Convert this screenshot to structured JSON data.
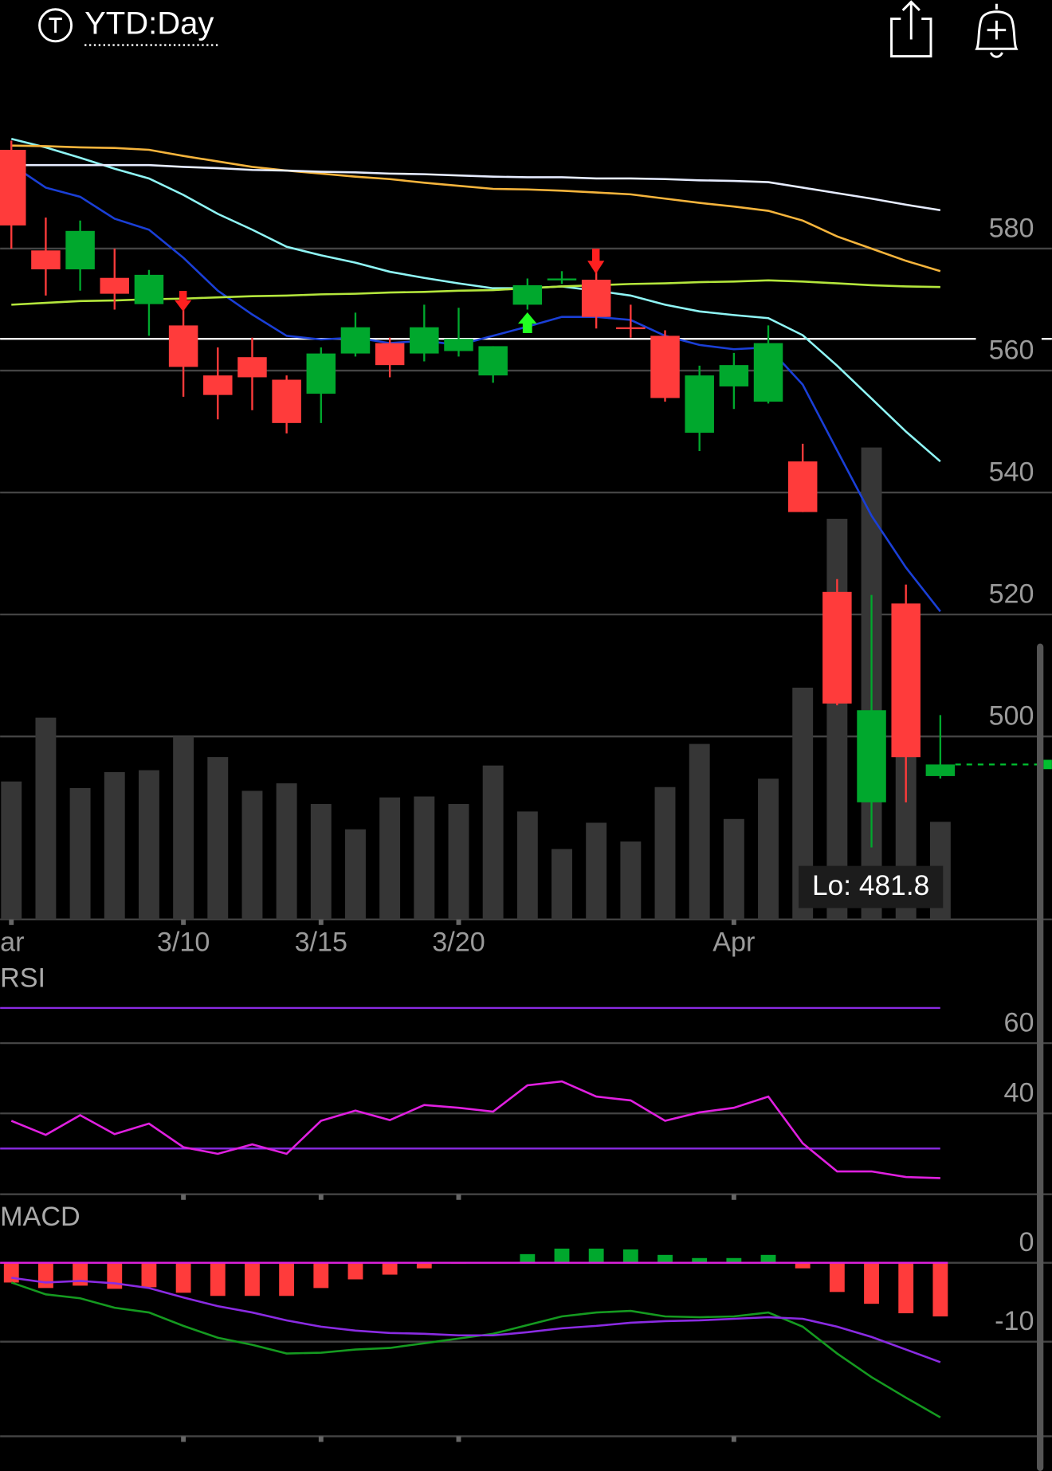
{
  "header": {
    "title": "YTD:Day"
  },
  "chart_data": [
    {
      "type": "candlestick",
      "categories": [
        "ar",
        null,
        null,
        null,
        null,
        "3/10",
        null,
        null,
        null,
        "3/15",
        null,
        null,
        null,
        "3/20",
        null,
        null,
        null,
        null,
        null,
        null,
        null,
        "Apr",
        null,
        null,
        null,
        null,
        null,
        null
      ],
      "open": [
        596.2,
        579.7,
        576.6,
        575.2,
        570.9,
        567.4,
        559.2,
        562.2,
        558.5,
        556.2,
        562.8,
        564.5,
        562.8,
        563.2,
        559.2,
        570.8,
        574.8,
        574.9,
        567.1,
        565.7,
        549.8,
        557.4,
        554.9,
        545.1,
        523.7,
        489.2,
        521.8,
        493.5
      ],
      "high": [
        597.7,
        585.1,
        584.6,
        580.0,
        576.5,
        571.5,
        563.8,
        565.4,
        559.2,
        563.8,
        569.5,
        565.4,
        570.8,
        570.3,
        564.0,
        575.1,
        576.3,
        576.2,
        570.8,
        566.6,
        560.8,
        562.9,
        567.4,
        548.0,
        525.8,
        523.2,
        524.9,
        503.5
      ],
      "low": [
        580.0,
        572.3,
        573.1,
        570.0,
        565.7,
        555.7,
        552.0,
        553.5,
        549.7,
        551.4,
        562.3,
        558.9,
        561.5,
        562.3,
        558.0,
        570.0,
        574.2,
        566.9,
        565.4,
        554.9,
        546.8,
        553.7,
        554.6,
        536.8,
        505.1,
        481.8,
        489.2,
        493.1
      ],
      "close": [
        583.8,
        576.6,
        582.9,
        572.6,
        575.7,
        560.6,
        556.0,
        558.9,
        551.4,
        562.8,
        567.1,
        560.9,
        567.1,
        565.2,
        564.0,
        574.0,
        575.1,
        568.8,
        566.9,
        555.5,
        559.2,
        560.9,
        564.5,
        536.8,
        505.4,
        504.3,
        496.6,
        495.4
      ],
      "up_color": "#00a82d",
      "down_color": "#ff3b3b",
      "volume": [
        147,
        215,
        140,
        157,
        159,
        195,
        173,
        137,
        145,
        123,
        96,
        130,
        131,
        123,
        164,
        115,
        75,
        103,
        83,
        141,
        187,
        107,
        150,
        247,
        427,
        503,
        280,
        104
      ],
      "volume_lim": [
        0,
        845
      ],
      "volume_color": "#363636",
      "series": [
        {
          "color": "#1a3fd6",
          "values": [
            593.8,
            590.0,
            588.5,
            584.9,
            583.1,
            578.5,
            573.1,
            569.2,
            565.7,
            565.1,
            565.4,
            564.5,
            564.9,
            564.2,
            565.7,
            567.2,
            568.8,
            568.8,
            568.3,
            565.7,
            564.2,
            563.5,
            563.8,
            557.7,
            546.9,
            536.2,
            527.7,
            520.5
          ]
        },
        {
          "color": "#8ff5f5",
          "values": [
            598.0,
            596.6,
            594.9,
            593.1,
            591.5,
            588.8,
            585.7,
            583.1,
            580.3,
            578.9,
            577.7,
            576.2,
            575.2,
            574.3,
            573.5,
            573.5,
            573.8,
            573.1,
            572.3,
            570.8,
            569.7,
            569.1,
            568.6,
            565.8,
            560.8,
            555.4,
            550.0,
            545.1
          ]
        },
        {
          "color": "#f5b43c",
          "values": [
            596.9,
            596.8,
            596.6,
            596.5,
            596.2,
            595.2,
            594.3,
            593.4,
            592.8,
            592.3,
            591.8,
            591.4,
            590.8,
            590.3,
            589.8,
            589.7,
            589.5,
            589.2,
            588.9,
            588.2,
            587.5,
            586.9,
            586.2,
            584.6,
            582.0,
            580.0,
            578.0,
            576.3
          ]
        },
        {
          "color": "#e6ecff",
          "values": [
            593.7,
            593.7,
            593.7,
            593.7,
            593.7,
            593.4,
            593.2,
            592.9,
            592.8,
            592.6,
            592.5,
            592.3,
            592.2,
            592.0,
            591.8,
            591.7,
            591.7,
            591.5,
            591.5,
            591.4,
            591.2,
            591.1,
            590.9,
            590.0,
            589.1,
            588.2,
            587.2,
            586.3
          ]
        },
        {
          "color": "#b4e63c",
          "values": [
            570.8,
            571.1,
            571.4,
            571.5,
            571.7,
            571.8,
            572.0,
            572.2,
            572.3,
            572.5,
            572.6,
            572.8,
            572.9,
            573.1,
            573.2,
            573.5,
            573.8,
            574.0,
            574.2,
            574.3,
            574.5,
            574.6,
            574.8,
            574.6,
            574.3,
            574.0,
            573.8,
            573.7
          ]
        }
      ],
      "hline": 565.2,
      "hline_color": "#ffffff",
      "last_price": 495.4,
      "last_color": "#00c030",
      "annotation": "Lo: 481.8",
      "ylim": [
        470,
        600
      ],
      "yticks": [
        580,
        560,
        540,
        520,
        500
      ],
      "grid": true
    },
    {
      "type": "line",
      "title": "RSI",
      "series": [
        {
          "color": "#e020e0",
          "values": [
            37.9,
            33.9,
            39.5,
            34.1,
            37.1,
            30.4,
            28.5,
            31.2,
            28.5,
            37.9,
            40.8,
            38.1,
            42.4,
            41.6,
            40.5,
            48.0,
            49.1,
            44.8,
            43.7,
            37.9,
            40.3,
            41.6,
            44.8,
            31.5,
            23.5,
            23.5,
            21.9,
            21.6
          ]
        }
      ],
      "levels": [
        70,
        30
      ],
      "level_color": "#8a2be2",
      "ylim": [
        17,
        82
      ],
      "yticks": [
        60,
        40
      ],
      "grid": true
    },
    {
      "type": "macd",
      "title": "MACD",
      "histogram": [
        -2.5,
        -3.2,
        -2.9,
        -3.3,
        -3.1,
        -3.8,
        -4.2,
        -4.2,
        -4.2,
        -3.2,
        -2.1,
        -1.5,
        -0.7,
        -0.1,
        0,
        1.1,
        1.8,
        1.8,
        1.7,
        1.0,
        0.6,
        0.6,
        1.0,
        -0.7,
        -3.7,
        -5.2,
        -6.4,
        -6.8
      ],
      "up_color": "#00a82d",
      "down_color": "#ff3b3b",
      "zero_color": "#e020e0",
      "series": [
        {
          "color": "#159a20",
          "values": [
            -2.5,
            -4.0,
            -4.5,
            -5.7,
            -6.3,
            -8.0,
            -9.5,
            -10.4,
            -11.5,
            -11.4,
            -11.0,
            -10.8,
            -10.2,
            -9.6,
            -9.0,
            -7.9,
            -6.8,
            -6.3,
            -6.1,
            -6.8,
            -6.9,
            -6.8,
            -6.3,
            -8.1,
            -11.5,
            -14.5,
            -17.1,
            -19.6
          ]
        },
        {
          "color": "#8a2be2",
          "values": [
            -1.9,
            -2.5,
            -2.3,
            -2.6,
            -3.2,
            -4.4,
            -5.5,
            -6.3,
            -7.3,
            -8.1,
            -8.6,
            -8.9,
            -9.0,
            -9.2,
            -9.2,
            -8.8,
            -8.3,
            -8.0,
            -7.6,
            -7.4,
            -7.3,
            -7.1,
            -6.9,
            -7.1,
            -8.1,
            -9.4,
            -11.0,
            -12.6
          ]
        }
      ],
      "ylim": [
        -22,
        7.3
      ],
      "yticks": [
        0,
        -10
      ],
      "grid": true
    }
  ]
}
